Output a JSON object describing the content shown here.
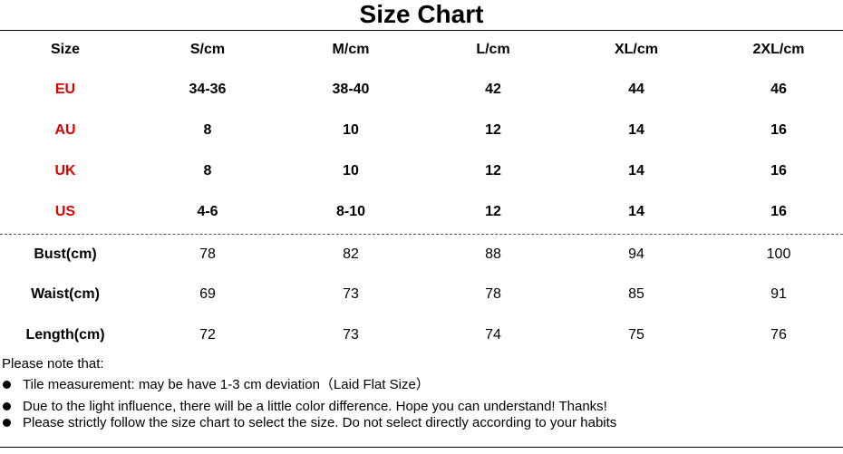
{
  "title": "Size Chart",
  "header": [
    "Size",
    "S/cm",
    "M/cm",
    "L/cm",
    "XL/cm",
    "2XL/cm"
  ],
  "size_rows": [
    {
      "label": "EU",
      "values": [
        "34-36",
        "38-40",
        "42",
        "44",
        "46"
      ]
    },
    {
      "label": "AU",
      "values": [
        "8",
        "10",
        "12",
        "14",
        "16"
      ]
    },
    {
      "label": "UK",
      "values": [
        "8",
        "10",
        "12",
        "14",
        "16"
      ]
    },
    {
      "label": "US",
      "values": [
        "4-6",
        "8-10",
        "12",
        "14",
        "16"
      ]
    }
  ],
  "measure_rows": [
    {
      "label": "Bust(cm)",
      "values": [
        "78",
        "82",
        "88",
        "94",
        "100"
      ]
    },
    {
      "label": "Waist(cm)",
      "values": [
        "69",
        "73",
        "78",
        "85",
        "91"
      ]
    },
    {
      "label": "Length(cm)",
      "values": [
        "72",
        "73",
        "74",
        "75",
        "76"
      ]
    }
  ],
  "notes": {
    "heading": "Please note that:",
    "items": [
      "Tile measurement: may be have 1-3 cm deviation（Laid Flat Size）",
      "Due to the light influence, there will be a little color difference. Hope you can understand! Thanks!",
      "Please strictly follow the size chart to select the size. Do not select directly according to your habits"
    ]
  },
  "colors": {
    "region_label": "#e00000",
    "text": "#000000",
    "background": "#ffffff"
  }
}
